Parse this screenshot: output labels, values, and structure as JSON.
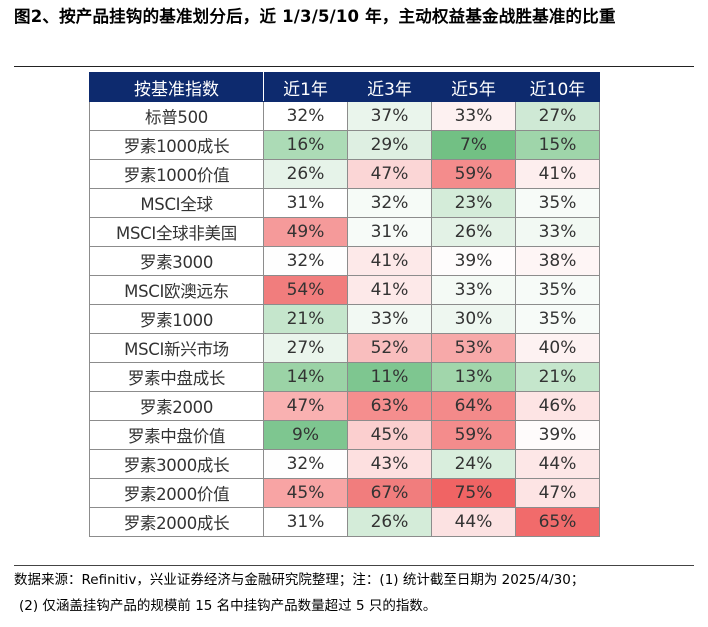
{
  "title": "图2、按产品挂钩的基准划分后，近 1/3/5/10 年，主动权益基金战胜基准的比重",
  "table": {
    "headers": [
      "按基准指数",
      "近1年",
      "近3年",
      "近5年",
      "近10年"
    ],
    "rows": [
      {
        "name": "标普500",
        "v1": "32%",
        "v3": "37%",
        "v5": "33%",
        "v10": "27%"
      },
      {
        "name": "罗素1000成长",
        "v1": "16%",
        "v3": "29%",
        "v5": "7%",
        "v10": "15%"
      },
      {
        "name": "罗素1000价值",
        "v1": "26%",
        "v3": "47%",
        "v5": "59%",
        "v10": "41%"
      },
      {
        "name": "MSCI全球",
        "v1": "31%",
        "v3": "32%",
        "v5": "23%",
        "v10": "35%"
      },
      {
        "name": "MSCI全球非美国",
        "v1": "49%",
        "v3": "31%",
        "v5": "26%",
        "v10": "33%"
      },
      {
        "name": "罗素3000",
        "v1": "32%",
        "v3": "41%",
        "v5": "39%",
        "v10": "38%"
      },
      {
        "name": "MSCI欧澳远东",
        "v1": "54%",
        "v3": "41%",
        "v5": "33%",
        "v10": "35%"
      },
      {
        "name": "罗素1000",
        "v1": "21%",
        "v3": "33%",
        "v5": "30%",
        "v10": "35%"
      },
      {
        "name": "MSCI新兴市场",
        "v1": "27%",
        "v3": "52%",
        "v5": "53%",
        "v10": "40%"
      },
      {
        "name": "罗素中盘成长",
        "v1": "14%",
        "v3": "11%",
        "v5": "13%",
        "v10": "21%"
      },
      {
        "name": "罗素2000",
        "v1": "47%",
        "v3": "63%",
        "v5": "64%",
        "v10": "46%"
      },
      {
        "name": "罗素中盘价值",
        "v1": "9%",
        "v3": "45%",
        "v5": "59%",
        "v10": "39%"
      },
      {
        "name": "罗素3000成长",
        "v1": "32%",
        "v3": "43%",
        "v5": "24%",
        "v10": "44%"
      },
      {
        "name": "罗素2000价值",
        "v1": "45%",
        "v3": "67%",
        "v5": "75%",
        "v10": "47%"
      },
      {
        "name": "罗素2000成长",
        "v1": "31%",
        "v3": "26%",
        "v5": "44%",
        "v10": "65%"
      }
    ]
  },
  "cell_colors": [
    [
      "#ffffff",
      "#eaf5ec",
      "#fdf1f1",
      "#cfe9d5"
    ],
    [
      "#acdbb6",
      "#deefe2",
      "#72c084",
      "#9fd5aa"
    ],
    [
      "#e6f3e9",
      "#fbd6d6",
      "#f48c8c",
      "#fdeeee"
    ],
    [
      "#ffffff",
      "#f6fbf7",
      "#d4ecd9",
      "#f7fbf8"
    ],
    [
      "#f59a9a",
      "#f7fbf8",
      "#e3f2e6",
      "#f2f9f3"
    ],
    [
      "#fefefe",
      "#fde9e9",
      "#fefcfc",
      "#fef5f5"
    ],
    [
      "#f17d7d",
      "#fde9e9",
      "#f4faf5",
      "#f7fbf8"
    ],
    [
      "#c5e6cc",
      "#f2f9f3",
      "#eef7f0",
      "#f7fbf8"
    ],
    [
      "#eaf5ec",
      "#f9bebe",
      "#f7a9a9",
      "#fdf2f2"
    ],
    [
      "#9bd3a6",
      "#7ec690",
      "#a1d6ab",
      "#c5e6cc"
    ],
    [
      "#f9b1b1",
      "#f58e8e",
      "#f38a8a",
      "#fde4e4"
    ],
    [
      "#7ec690",
      "#fbcfcf",
      "#f48c8c",
      "#fefbfb"
    ],
    [
      "#fefefe",
      "#fde0e0",
      "#d9eedd",
      "#fde7e7"
    ],
    [
      "#f8a4a4",
      "#f17d7d",
      "#f06464",
      "#fde4e4"
    ],
    [
      "#ffffff",
      "#d4ecd9",
      "#fce2e2",
      "#f16b6b"
    ]
  ],
  "notes": {
    "line1": "数据来源：Refinitiv，兴业证券经济与金融研究院整理；注：(1) 统计截至日期为 2025/4/30；",
    "line2": "(2) 仅涵盖挂钩产品的规模前 15 名中挂钩产品数量超过 5 只的指数。"
  }
}
